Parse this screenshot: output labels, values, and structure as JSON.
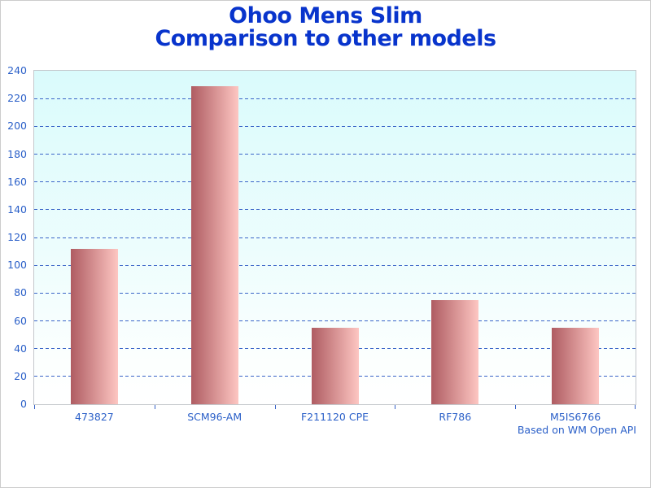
{
  "chart_data": {
    "type": "bar",
    "title": "Ohoo Mens Slim",
    "subtitle": "Comparison to other models",
    "categories": [
      "473827",
      "SCM96-AM",
      "F211120 CPE",
      "RF786",
      "M5IS6766"
    ],
    "values": [
      112,
      229,
      55,
      75,
      55
    ],
    "ylim": [
      0,
      240
    ],
    "yticks": [
      0,
      20,
      40,
      60,
      80,
      100,
      120,
      140,
      160,
      180,
      200,
      220,
      240
    ],
    "xlabel": "",
    "ylabel": "",
    "grid": "horizontal-dashed",
    "legend": "none",
    "footnote": "Based on WM Open API",
    "colors": {
      "title": "#0834cc",
      "axis_label": "#2a5fc8",
      "gridline": "#3a64c8",
      "bar_left": "#af5c62",
      "bar_right": "#fdc6c2",
      "plot_top": "#dafbfc",
      "plot_bottom": "#ffffff",
      "plot_border": "#c4c8cc",
      "border": "#cccccc"
    }
  }
}
